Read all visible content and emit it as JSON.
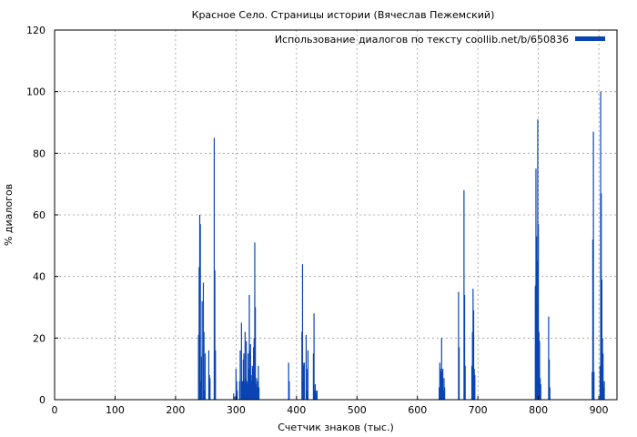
{
  "chart_data": {
    "type": "bar",
    "title": "Красное Село. Страницы истории (Вячеслав Пежемский)",
    "xlabel": "Счетчик знаков (тыс.)",
    "ylabel": "% диалогов",
    "xlim": [
      0,
      930
    ],
    "ylim": [
      0,
      120
    ],
    "xticks": [
      0,
      100,
      200,
      300,
      400,
      500,
      600,
      700,
      800,
      900
    ],
    "yticks": [
      0,
      20,
      40,
      60,
      80,
      100,
      120
    ],
    "grid": true,
    "legend_position": "top-right",
    "bar_width": 1.8,
    "series": [
      {
        "name": "Использование диалогов по тексту coollib.net/b/650836",
        "color": "#0a44b4",
        "x": [
          238,
          239,
          240,
          241,
          242,
          243,
          244,
          246,
          247,
          248,
          249,
          255,
          256,
          257,
          264,
          265,
          266,
          296,
          298,
          300,
          301,
          302,
          306,
          307,
          309,
          310,
          311,
          312,
          313,
          314,
          315,
          316,
          317,
          318,
          319,
          320,
          321,
          322,
          323,
          324,
          325,
          326,
          327,
          328,
          329,
          330,
          331,
          332,
          333,
          334,
          335,
          336,
          337,
          338,
          387,
          388,
          409,
          410,
          411,
          412,
          413,
          416,
          417,
          418,
          419,
          428,
          429,
          430,
          431,
          432,
          433,
          434,
          636,
          637,
          638,
          639,
          640,
          641,
          642,
          643,
          644,
          645,
          668,
          669,
          677,
          678,
          679,
          690,
          691,
          692,
          693,
          694,
          695,
          795,
          796,
          797,
          798,
          799,
          800,
          801,
          802,
          803,
          804,
          817,
          818,
          819,
          889,
          890,
          891,
          892,
          902,
          903,
          904,
          905,
          906,
          907,
          908,
          909
        ],
        "values": [
          21,
          43,
          60,
          57,
          6,
          14,
          32,
          38,
          22,
          3,
          15,
          16,
          8,
          7,
          85,
          42,
          16,
          2,
          1,
          10,
          6,
          3,
          6,
          16,
          25,
          6,
          6,
          13,
          15,
          6,
          22,
          7,
          19,
          6,
          5,
          15,
          10,
          34,
          16,
          18,
          8,
          6,
          11,
          10,
          17,
          20,
          51,
          30,
          5,
          7,
          4,
          6,
          11,
          4,
          12,
          6,
          22,
          44,
          12,
          11,
          12,
          21,
          10,
          3,
          16,
          15,
          28,
          3,
          5,
          3,
          2,
          3,
          4,
          12,
          10,
          9,
          20,
          9,
          10,
          3,
          7,
          4,
          35,
          17,
          68,
          34,
          11,
          11,
          22,
          36,
          29,
          10,
          8,
          37,
          75,
          53,
          45,
          91,
          57,
          22,
          19,
          7,
          5,
          27,
          13,
          4,
          9,
          52,
          87,
          9,
          11,
          100,
          67,
          39,
          20,
          15,
          4,
          6
        ]
      }
    ]
  }
}
